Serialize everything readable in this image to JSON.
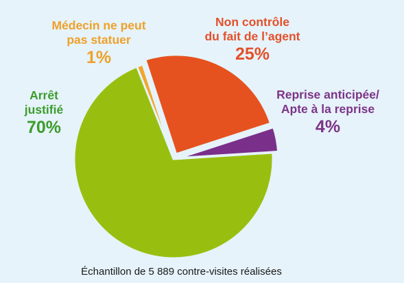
{
  "chart_data": {
    "type": "pie",
    "title": "",
    "caption": "Échantillon de 5 889 contre-visites réalisées",
    "slices": [
      {
        "key": "arret",
        "label_lines": [
          "Arrêt",
          "justifié"
        ],
        "percent_label": "70%",
        "value": 70,
        "color": "#98bf10"
      },
      {
        "key": "medecin",
        "label_lines": [
          "Médecin ne peut",
          "pas statuer"
        ],
        "percent_label": "1%",
        "value": 1,
        "color": "#f3a52b"
      },
      {
        "key": "non",
        "label_lines": [
          "Non contrôle",
          "du fait de l’agent"
        ],
        "percent_label": "25%",
        "value": 25,
        "color": "#e6521f"
      },
      {
        "key": "reprise",
        "label_lines": [
          "Reprise anticipée/",
          "Apte à la reprise"
        ],
        "percent_label": "4%",
        "value": 4,
        "color": "#7a2f8a"
      }
    ],
    "label_colors": {
      "arret": "#3c9c2c",
      "medecin": "#eea12a",
      "non": "#e4502a",
      "reprise": "#7d3487"
    },
    "background": "#e6f3fa"
  }
}
